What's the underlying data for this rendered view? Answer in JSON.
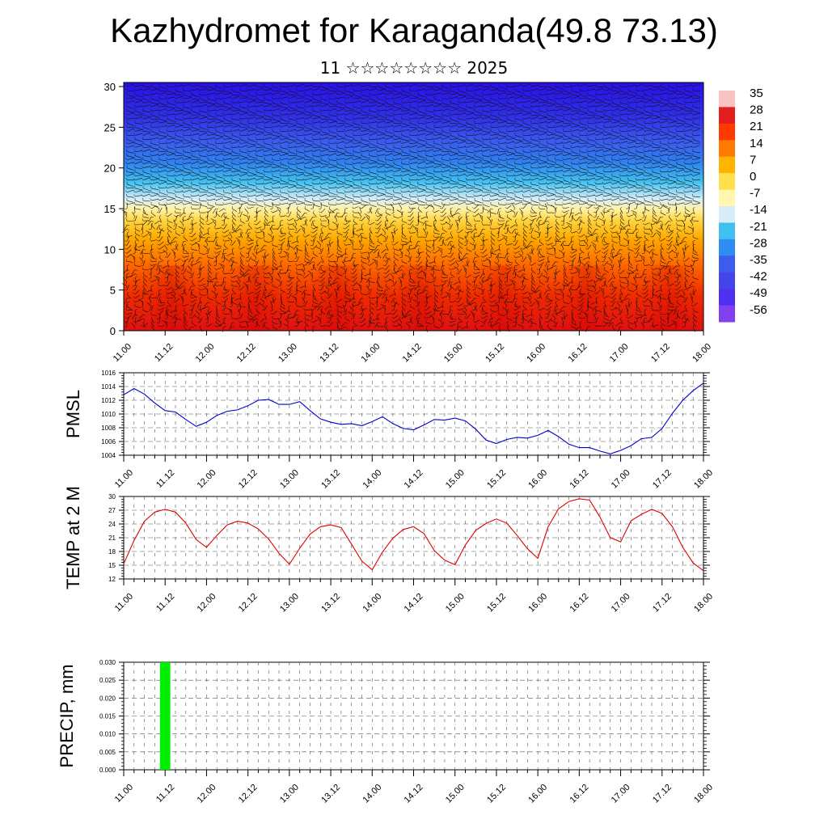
{
  "header": {
    "title": "Kazhydromet for Karaganda(49.8 73.13)",
    "subtitle": "11 ☆☆☆☆☆☆☆☆ 2025"
  },
  "time_labels": [
    "11.00",
    "11.12",
    "12.00",
    "12.12",
    "13.00",
    "13.12",
    "14.00",
    "14.12",
    "15.00",
    "15.12",
    "16.00",
    "16.12",
    "17.00",
    "17.12",
    "18.00"
  ],
  "colors": {
    "pmsl_line": "#0000cc",
    "temp_line": "#dd0000",
    "precip_bar": "#00ee00",
    "grid": "#555555"
  },
  "chart_data": [
    {
      "type": "heatmap",
      "title": "",
      "x_tick_labels": [
        "11.00",
        "11.12",
        "12.00",
        "12.12",
        "13.00",
        "13.12",
        "14.00",
        "14.12",
        "15.00",
        "15.12",
        "16.00",
        "16.12",
        "17.00",
        "17.12",
        "18.00"
      ],
      "y_ticks": [
        0,
        5,
        10,
        15,
        20,
        25,
        30
      ],
      "ylim": [
        0,
        30.5
      ],
      "colorbar_labels": [
        "35",
        "28",
        "21",
        "14",
        "7",
        "0",
        "-7",
        "-14",
        "-21",
        "-28",
        "-35",
        "-42",
        "-49",
        "-56"
      ],
      "colorbar_colors": [
        "#f7c3c3",
        "#e21e1e",
        "#ff3a00",
        "#ff7a00",
        "#ffb400",
        "#ffe04a",
        "#fff6b0",
        "#d6ecf6",
        "#40c0f0",
        "#2f8cf0",
        "#3d5cf0",
        "#4444e8",
        "#5030f0",
        "#8040f0"
      ],
      "overlay": "wind vectors"
    },
    {
      "type": "line",
      "ylabel": "PMSL",
      "ylim": [
        1004,
        1016
      ],
      "y_ticks": [
        1004,
        1006,
        1008,
        1010,
        1012,
        1014,
        1016
      ],
      "x_tick_labels": [
        "11.00",
        "11.12",
        "12.00",
        "12.12",
        "13.00",
        "13.12",
        "14.00",
        "14.12",
        "15.00",
        "15.12",
        "16.00",
        "16.12",
        "17.00",
        "17.12",
        "18.00"
      ],
      "x_hours": [
        0,
        3,
        6,
        9,
        12,
        15,
        18,
        21,
        24,
        27,
        30,
        33,
        36,
        39,
        42,
        45,
        48,
        51,
        54,
        57,
        60,
        63,
        66,
        69,
        72,
        75,
        78,
        81,
        84,
        87,
        90,
        93,
        96,
        99,
        102,
        105,
        108,
        111,
        114,
        117,
        120,
        123,
        126,
        129,
        132,
        135,
        138,
        141,
        144,
        147,
        150,
        153,
        156,
        159,
        162,
        165,
        168
      ],
      "values": [
        1012.8,
        1013.7,
        1012.9,
        1011.6,
        1010.5,
        1010.3,
        1009.2,
        1008.2,
        1008.8,
        1009.8,
        1010.4,
        1010.6,
        1011.2,
        1012.0,
        1012.1,
        1011.4,
        1011.4,
        1011.8,
        1010.5,
        1009.3,
        1008.8,
        1008.5,
        1008.6,
        1008.3,
        1008.9,
        1009.6,
        1008.6,
        1007.9,
        1007.7,
        1008.4,
        1009.2,
        1009.1,
        1009.4,
        1009.0,
        1007.8,
        1006.2,
        1005.7,
        1006.3,
        1006.6,
        1006.5,
        1006.9,
        1007.6,
        1006.7,
        1005.6,
        1005.1,
        1005.1,
        1004.6,
        1004.2,
        1004.7,
        1005.4,
        1006.4,
        1006.6,
        1007.9,
        1010.1,
        1012.0,
        1013.4,
        1014.5
      ]
    },
    {
      "type": "line",
      "ylabel": "TEMP at 2 M",
      "ylim": [
        12,
        30
      ],
      "y_ticks": [
        12,
        15,
        18,
        21,
        24,
        27,
        30
      ],
      "x_tick_labels": [
        "11.00",
        "11.12",
        "12.00",
        "12.12",
        "13.00",
        "13.12",
        "14.00",
        "14.12",
        "15.00",
        "15.12",
        "16.00",
        "16.12",
        "17.00",
        "17.12",
        "18.00"
      ],
      "x_hours": [
        0,
        3,
        6,
        9,
        12,
        15,
        18,
        21,
        24,
        27,
        30,
        33,
        36,
        39,
        42,
        45,
        48,
        51,
        54,
        57,
        60,
        63,
        66,
        69,
        72,
        75,
        78,
        81,
        84,
        87,
        90,
        93,
        96,
        99,
        102,
        105,
        108,
        111,
        114,
        117,
        120,
        123,
        126,
        129,
        132,
        135,
        138,
        141,
        144,
        147,
        150,
        153,
        156,
        159,
        162,
        165,
        168
      ],
      "values": [
        15.3,
        20.4,
        24.6,
        26.6,
        27.2,
        26.6,
        24.2,
        20.6,
        18.9,
        21.5,
        23.8,
        24.6,
        24.2,
        22.9,
        20.7,
        17.6,
        15.2,
        18.7,
        21.8,
        23.4,
        23.8,
        23.2,
        19.6,
        15.9,
        14.0,
        17.9,
        20.9,
        22.8,
        23.4,
        21.9,
        18.2,
        16.1,
        15.1,
        19.4,
        22.6,
        24.1,
        25.1,
        24.2,
        21.5,
        18.6,
        16.5,
        23.4,
        27.3,
        28.9,
        29.5,
        29.2,
        25.5,
        21.0,
        20.1,
        24.7,
        26.1,
        27.2,
        26.3,
        23.4,
        18.9,
        15.5,
        13.8
      ]
    },
    {
      "type": "bar",
      "ylabel": "PRECIP, mm",
      "ylim": [
        0,
        0.03
      ],
      "y_tick_labels": [
        "0.000",
        "0.005",
        "0.010",
        "0.015",
        "0.020",
        "0.025",
        "0.030"
      ],
      "x_tick_labels": [
        "11.00",
        "11.12",
        "12.00",
        "12.12",
        "13.00",
        "13.12",
        "14.00",
        "14.12",
        "15.00",
        "15.12",
        "16.00",
        "16.12",
        "17.00",
        "17.12",
        "18.00"
      ],
      "bars": [
        {
          "start_hour": 10.5,
          "end_hour": 13.5,
          "value": 0.03
        }
      ]
    }
  ]
}
